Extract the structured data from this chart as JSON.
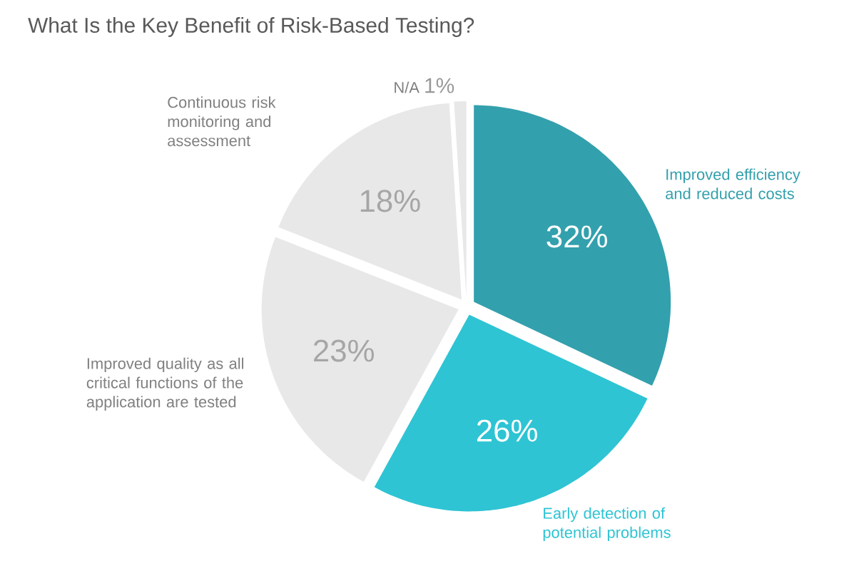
{
  "chart_data": {
    "type": "pie",
    "title": "What Is the Key Benefit of Risk-Based Testing?",
    "categories": [
      "Improved efficiency and reduced costs",
      "Early detection of potential problems",
      "Improved quality as all critical functions of the application are tested",
      "Continuous risk monitoring and assessment",
      "N/A"
    ],
    "values": [
      32,
      26,
      23,
      18,
      1
    ],
    "colors": [
      "#33a0ad",
      "#2ec4d3",
      "#e8e8e8",
      "#e8e8e8",
      "#e8e8e8"
    ],
    "value_labels": [
      "32%",
      "26%",
      "23%",
      "18%",
      "1%"
    ]
  }
}
